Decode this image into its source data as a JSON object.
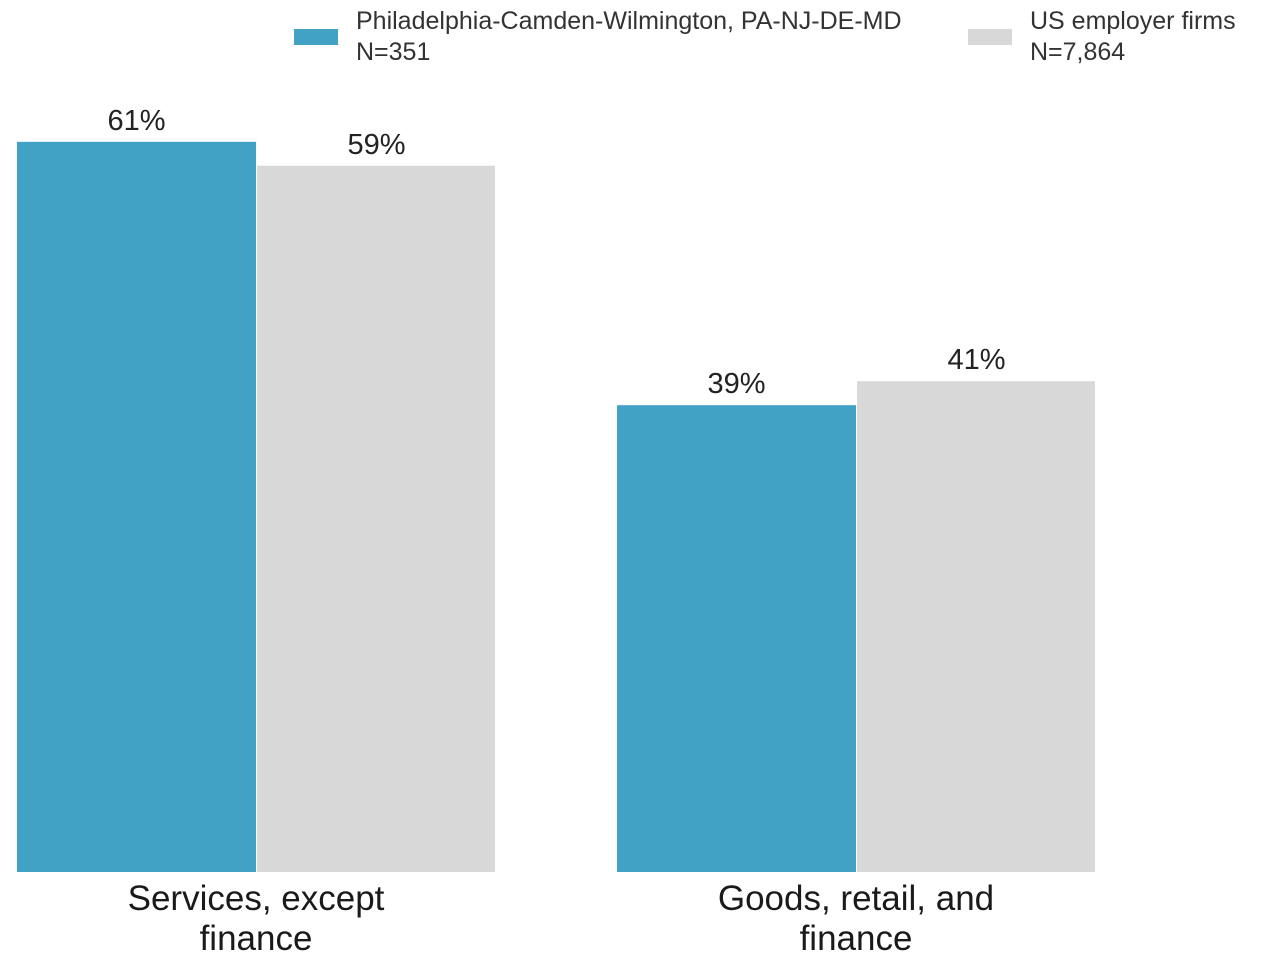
{
  "chart_data": {
    "type": "bar",
    "title": "",
    "xlabel": "",
    "ylabel": "",
    "ylim": [
      0,
      70
    ],
    "grid": false,
    "legend_position": "top",
    "categories": [
      "Services, except finance",
      "Goods, retail, and finance"
    ],
    "category_lines": [
      [
        "Services, except",
        "finance"
      ],
      [
        "Goods, retail, and",
        "finance"
      ]
    ],
    "series": [
      {
        "name": "Philadelphia-Camden-Wilmington, PA-NJ-DE-MD",
        "sample": "N=351",
        "color": "#42a2c6",
        "values": [
          61,
          39
        ],
        "labels": [
          "61%",
          "39%"
        ]
      },
      {
        "name": "US employer firms",
        "sample": "N=7,864",
        "color": "#d8d8d8",
        "values": [
          59,
          41
        ],
        "labels": [
          "59%",
          "41%"
        ]
      }
    ]
  }
}
